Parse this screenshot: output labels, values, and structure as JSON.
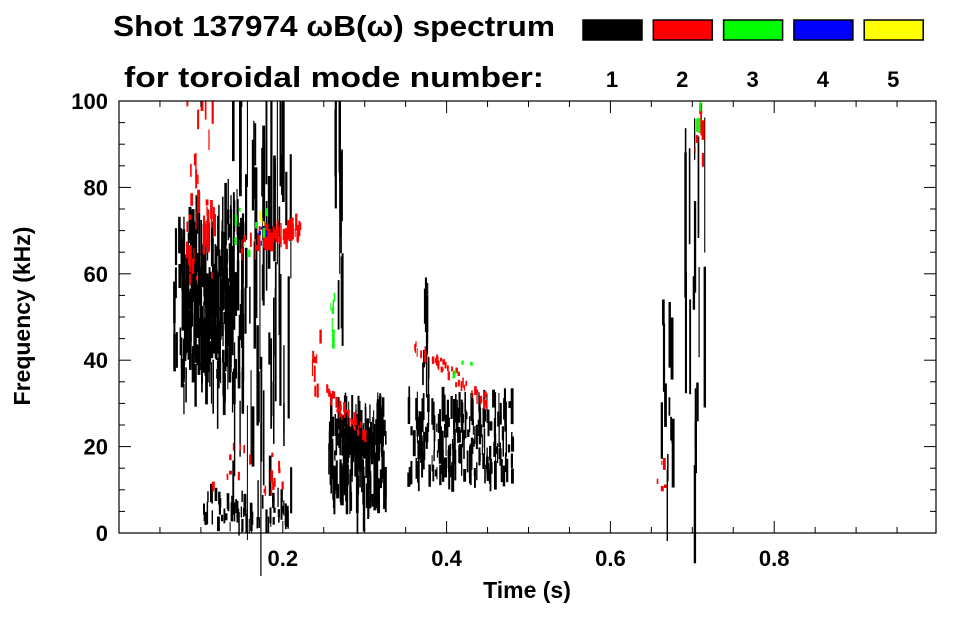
{
  "chart_data": {
    "type": "heatmap",
    "title": "Shot 137974 ωB(ω) spectrum",
    "legend_title": "for toroidal mode number:",
    "legend_placement": "top-right",
    "legend": [
      {
        "label": "1",
        "color": "#000000"
      },
      {
        "label": "2",
        "color": "#ff0000"
      },
      {
        "label": "3",
        "color": "#00ff00"
      },
      {
        "label": "4",
        "color": "#0000ff"
      },
      {
        "label": "5",
        "color": "#ffff00"
      }
    ],
    "xlabel": "Time (s)",
    "ylabel": "Frequency (kHz)",
    "xlim": [
      0,
      1.0
    ],
    "ylim": [
      0,
      100
    ],
    "xticks": [
      {
        "v": 0.2,
        "label": "0.2"
      },
      {
        "v": 0.4,
        "label": "0.4"
      },
      {
        "v": 0.6,
        "label": "0.6"
      },
      {
        "v": 0.8,
        "label": "0.8"
      }
    ],
    "yticks": [
      {
        "v": 0,
        "label": "0"
      },
      {
        "v": 20,
        "label": "20"
      },
      {
        "v": 40,
        "label": "40"
      },
      {
        "v": 60,
        "label": "60"
      },
      {
        "v": 80,
        "label": "80"
      },
      {
        "v": 100,
        "label": "100"
      }
    ],
    "x_minor_step": 0.05,
    "y_minor_step": 5,
    "grid": false,
    "regions": [
      {
        "mode": 1,
        "t": [
          0.065,
          0.155
        ],
        "f": [
          30,
          74
        ],
        "n": 160,
        "len": [
          4,
          18
        ]
      },
      {
        "mode": 1,
        "t": [
          0.075,
          0.13
        ],
        "f": [
          40,
          62
        ],
        "n": 140,
        "len": [
          4,
          12
        ]
      },
      {
        "mode": 1,
        "t": [
          0.13,
          0.21
        ],
        "f": [
          5,
          95
        ],
        "n": 70,
        "len": [
          8,
          40
        ]
      },
      {
        "mode": 1,
        "t": [
          0.1,
          0.21
        ],
        "f": [
          1,
          9
        ],
        "n": 60,
        "len": [
          2,
          6
        ]
      },
      {
        "mode": 2,
        "t": [
          0.08,
          0.117
        ],
        "f": [
          58,
          100
        ],
        "n": 40,
        "len": [
          2,
          8
        ]
      },
      {
        "mode": 2,
        "t": [
          0.148,
          0.22
        ],
        "f": [
          63,
          73
        ],
        "n": 50,
        "len": [
          2,
          6
        ],
        "slope": 60
      },
      {
        "mode": 2,
        "t": [
          0.1,
          0.2
        ],
        "f": [
          8,
          20
        ],
        "n": 20,
        "len": [
          1,
          3
        ]
      },
      {
        "mode": 3,
        "t": [
          0.14,
          0.18
        ],
        "f": [
          64,
          82
        ],
        "n": 8,
        "len": [
          1,
          3
        ]
      },
      {
        "mode": 4,
        "t": [
          0.16,
          0.18
        ],
        "f": [
          67,
          71
        ],
        "n": 4,
        "len": [
          1,
          2
        ]
      },
      {
        "mode": 5,
        "t": [
          0.17,
          0.18
        ],
        "f": [
          71,
          74
        ],
        "n": 3,
        "len": [
          1,
          2
        ]
      },
      {
        "mode": 1,
        "t": [
          0.262,
          0.272
        ],
        "f": [
          45,
          99
        ],
        "n": 12,
        "len": [
          10,
          40
        ]
      },
      {
        "mode": 1,
        "t": [
          0.254,
          0.325
        ],
        "f": [
          6,
          28
        ],
        "n": 180,
        "len": [
          3,
          14
        ]
      },
      {
        "mode": 2,
        "t": [
          0.25,
          0.3
        ],
        "f": [
          22,
          33
        ],
        "n": 40,
        "len": [
          1,
          3
        ],
        "slope": -200
      },
      {
        "mode": 2,
        "t": [
          0.235,
          0.245
        ],
        "f": [
          30,
          45
        ],
        "n": 8,
        "len": [
          2,
          6
        ]
      },
      {
        "mode": 3,
        "t": [
          0.258,
          0.264
        ],
        "f": [
          43,
          55
        ],
        "n": 6,
        "len": [
          2,
          5
        ]
      },
      {
        "mode": 1,
        "t": [
          0.35,
          0.48
        ],
        "f": [
          12,
          30
        ],
        "n": 200,
        "len": [
          2,
          10
        ]
      },
      {
        "mode": 1,
        "t": [
          0.37,
          0.38
        ],
        "f": [
          30,
          56
        ],
        "n": 10,
        "len": [
          4,
          18
        ]
      },
      {
        "mode": 2,
        "t": [
          0.355,
          0.455
        ],
        "f": [
          29,
          44
        ],
        "n": 45,
        "len": [
          1,
          3
        ],
        "slope": -150
      },
      {
        "mode": 3,
        "t": [
          0.4,
          0.43
        ],
        "f": [
          36,
          40
        ],
        "n": 4,
        "len": [
          1,
          2
        ]
      },
      {
        "mode": 1,
        "t": [
          0.66,
          0.675
        ],
        "f": [
          2,
          55
        ],
        "n": 12,
        "len": [
          4,
          20
        ]
      },
      {
        "mode": 1,
        "t": [
          0.69,
          0.715
        ],
        "f": [
          2,
          92
        ],
        "n": 16,
        "len": [
          8,
          40
        ]
      },
      {
        "mode": 2,
        "t": [
          0.656,
          0.666
        ],
        "f": [
          10,
          17
        ],
        "n": 5,
        "len": [
          1,
          4
        ]
      },
      {
        "mode": 2,
        "t": [
          0.702,
          0.712
        ],
        "f": [
          80,
          98
        ],
        "n": 8,
        "len": [
          2,
          8
        ]
      },
      {
        "mode": 3,
        "t": [
          0.704,
          0.71
        ],
        "f": [
          94,
          100
        ],
        "n": 3,
        "len": [
          2,
          4
        ]
      }
    ]
  }
}
